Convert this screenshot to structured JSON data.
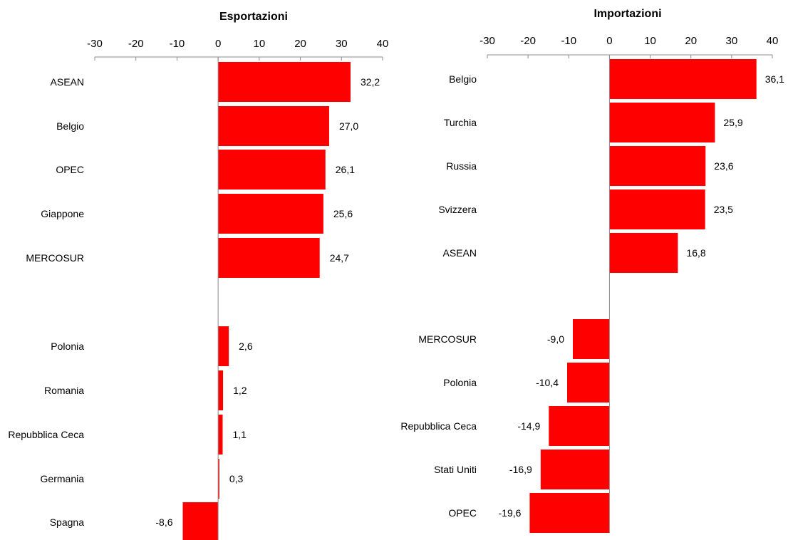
{
  "colors": {
    "bar": "#ff0000",
    "axis": "#8c8c8c"
  },
  "chart_data": [
    {
      "type": "bar",
      "orientation": "horizontal",
      "title": "Esportazioni",
      "xlim": [
        -30,
        40
      ],
      "ticks": [
        "-30",
        "-20",
        "-10",
        "0",
        "10",
        "20",
        "30",
        "40"
      ],
      "tick_values": [
        -30,
        -20,
        -10,
        0,
        10,
        20,
        30,
        40
      ],
      "grid": false,
      "groups": [
        {
          "categories": [
            "ASEAN",
            "Belgio",
            "OPEC",
            "Giappone",
            "MERCOSUR"
          ],
          "values": [
            32.2,
            27.0,
            26.1,
            25.6,
            24.7
          ],
          "labels": [
            "32,2",
            "27,0",
            "26,1",
            "25,6",
            "24,7"
          ]
        },
        {
          "categories": [
            "Polonia",
            "Romania",
            "Repubblica Ceca",
            "Germania",
            "Spagna"
          ],
          "values": [
            2.6,
            1.2,
            1.1,
            0.3,
            -8.6
          ],
          "labels": [
            "2,6",
            "1,2",
            "1,1",
            "0,3",
            "-8,6"
          ]
        }
      ]
    },
    {
      "type": "bar",
      "orientation": "horizontal",
      "title": "Importazioni",
      "xlim": [
        -30,
        40
      ],
      "ticks": [
        "-30",
        "-20",
        "-10",
        "0",
        "10",
        "20",
        "30",
        "40"
      ],
      "tick_values": [
        -30,
        -20,
        -10,
        0,
        10,
        20,
        30,
        40
      ],
      "grid": false,
      "groups": [
        {
          "categories": [
            "Belgio",
            "Turchia",
            "Russia",
            "Svizzera",
            "ASEAN"
          ],
          "values": [
            36.1,
            25.9,
            23.6,
            23.5,
            16.8
          ],
          "labels": [
            "36,1",
            "25,9",
            "23,6",
            "23,5",
            "16,8"
          ]
        },
        {
          "categories": [
            "MERCOSUR",
            "Polonia",
            "Repubblica Ceca",
            "Stati Uniti",
            "OPEC"
          ],
          "values": [
            -9.0,
            -10.4,
            -14.9,
            -16.9,
            -19.6
          ],
          "labels": [
            "-9,0",
            "-10,4",
            "-14,9",
            "-16,9",
            "-19,6"
          ]
        }
      ]
    }
  ]
}
